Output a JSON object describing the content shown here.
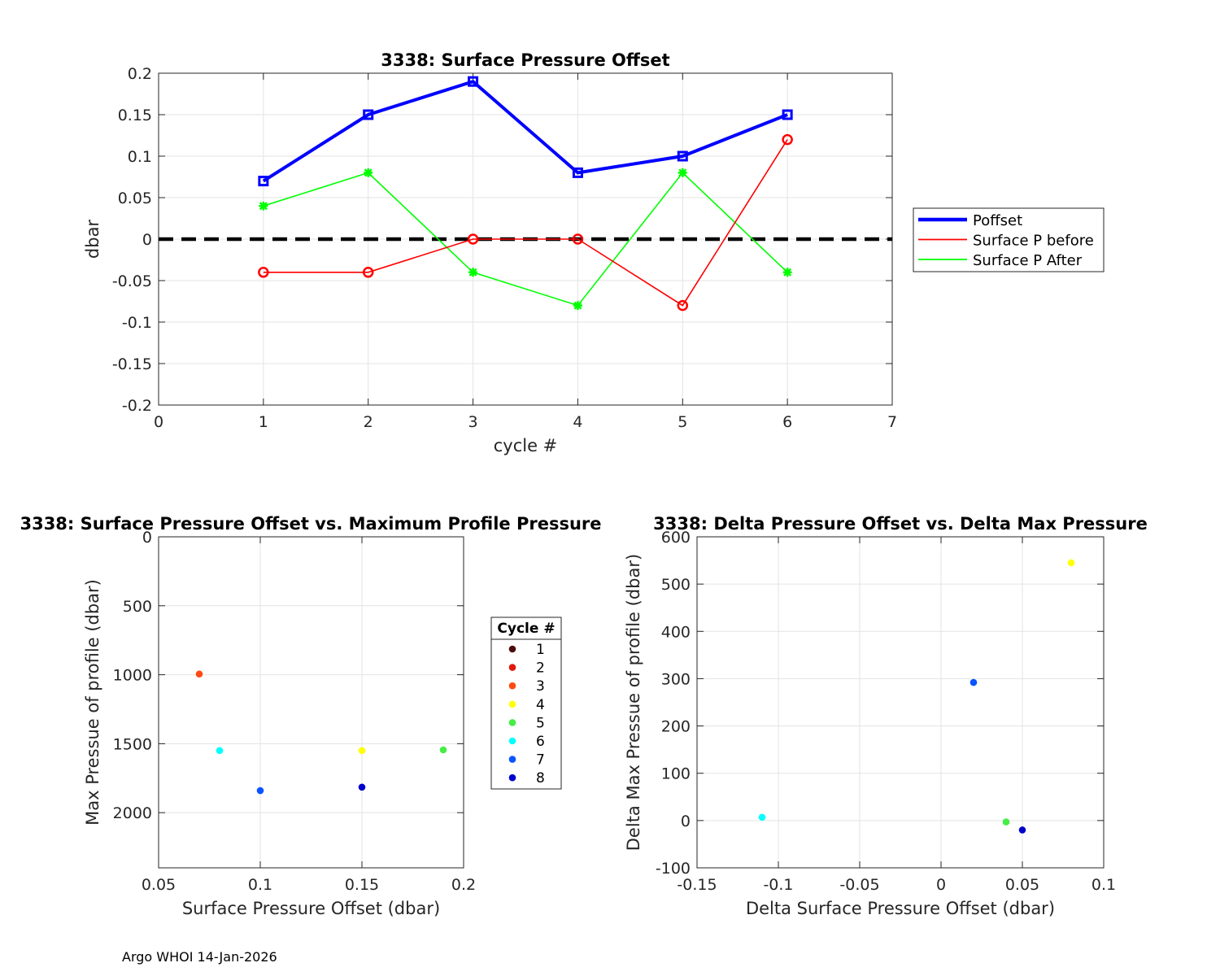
{
  "footer": "Argo WHOI 14-Jan-2026",
  "chart_data": [
    {
      "type": "line",
      "title": "3338: Surface Pressure Offset",
      "xlabel": "cycle #",
      "ylabel": "dbar",
      "xlim": [
        0,
        7
      ],
      "ylim": [
        -0.2,
        0.2
      ],
      "xticks": [
        0,
        1,
        2,
        3,
        4,
        5,
        6,
        7
      ],
      "yticks": [
        -0.2,
        -0.15,
        -0.1,
        -0.05,
        0,
        0.05,
        0.1,
        0.15,
        0.2
      ],
      "x": [
        1,
        2,
        3,
        4,
        5,
        6
      ],
      "grid": true,
      "legend_position": "outside-right",
      "reference_line": {
        "y": 0,
        "style": "dashed",
        "color": "#000000"
      },
      "series": [
        {
          "name": "Poffset",
          "values": [
            0.07,
            0.15,
            0.19,
            0.08,
            0.1,
            0.15
          ],
          "color": "#0000ff",
          "marker": "square",
          "thick": true
        },
        {
          "name": "Surface P before",
          "values": [
            -0.04,
            -0.04,
            0.0,
            0.0,
            -0.08,
            0.12
          ],
          "color": "#ff0000",
          "marker": "circle",
          "thick": false
        },
        {
          "name": "Surface P After",
          "values": [
            0.04,
            0.08,
            -0.04,
            -0.08,
            0.08,
            -0.04
          ],
          "color": "#00ff00",
          "marker": "star",
          "thick": false
        }
      ]
    },
    {
      "type": "scatter",
      "title": "3338: Surface Pressure Offset vs. Maximum Profile Pressure",
      "xlabel": "Surface Pressure Offset (dbar)",
      "ylabel": "Max Pressue of profile (dbar)",
      "xlim": [
        0.05,
        0.2
      ],
      "ylim": [
        0,
        2400
      ],
      "y_reversed": true,
      "xticks": [
        0.05,
        0.1,
        0.15,
        0.2
      ],
      "yticks": [
        0,
        500,
        1000,
        1500,
        2000
      ],
      "grid": true,
      "legend_title": "Cycle #",
      "legend": [
        {
          "label": "1",
          "color": "#4a0d0d"
        },
        {
          "label": "2",
          "color": "#e01a0a"
        },
        {
          "label": "3",
          "color": "#ff4a14"
        },
        {
          "label": "4",
          "color": "#ffff00"
        },
        {
          "label": "5",
          "color": "#44ee44"
        },
        {
          "label": "6",
          "color": "#00ffff"
        },
        {
          "label": "7",
          "color": "#0a55ff"
        },
        {
          "label": "8",
          "color": "#0000cc"
        }
      ],
      "points": [
        {
          "x": 0.07,
          "y": 995,
          "color": "#ff4a14"
        },
        {
          "x": 0.08,
          "y": 1550,
          "color": "#00ffff"
        },
        {
          "x": 0.1,
          "y": 1840,
          "color": "#0a55ff"
        },
        {
          "x": 0.15,
          "y": 1550,
          "color": "#ffff00"
        },
        {
          "x": 0.15,
          "y": 1815,
          "color": "#0000cc"
        },
        {
          "x": 0.19,
          "y": 1545,
          "color": "#44ee44"
        }
      ]
    },
    {
      "type": "scatter",
      "title": "3338: Delta Pressure Offset vs. Delta Max Pressure",
      "xlabel": "Delta Surface Pressure Offset (dbar)",
      "ylabel": "Delta Max Pressue of profile (dbar)",
      "xlim": [
        -0.15,
        0.1
      ],
      "ylim": [
        -100,
        600
      ],
      "xticks": [
        -0.15,
        -0.1,
        -0.05,
        0,
        0.05,
        0.1
      ],
      "yticks": [
        -100,
        0,
        100,
        200,
        300,
        400,
        500,
        600
      ],
      "grid": true,
      "points": [
        {
          "x": 0.08,
          "y": 545,
          "color": "#ffff00"
        },
        {
          "x": 0.02,
          "y": 292,
          "color": "#0a55ff"
        },
        {
          "x": -0.11,
          "y": 7,
          "color": "#00ffff"
        },
        {
          "x": 0.04,
          "y": -3,
          "color": "#44ee44"
        },
        {
          "x": 0.05,
          "y": -20,
          "color": "#0000cc"
        }
      ]
    }
  ]
}
